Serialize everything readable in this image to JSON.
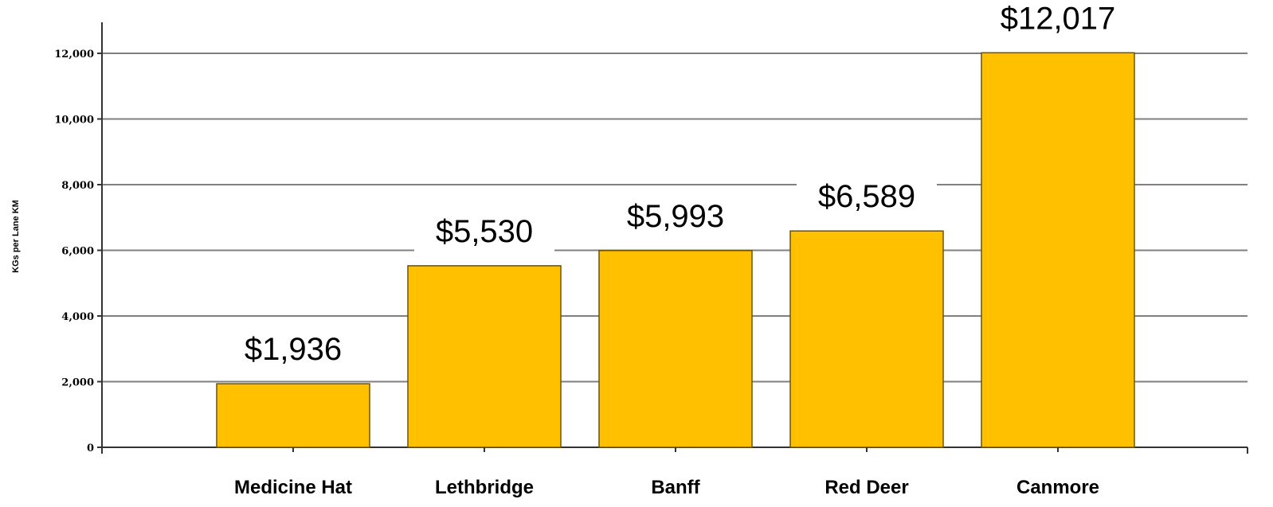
{
  "chart_data": {
    "type": "bar",
    "title": "",
    "xlabel": "",
    "ylabel": "KGs per Lane KM",
    "categories": [
      "Medicine Hat",
      "Lethbridge",
      "Banff",
      "Red Deer",
      "Canmore"
    ],
    "values": [
      1936,
      5530,
      5993,
      6589,
      12017
    ],
    "data_labels": [
      "$1,936",
      "$5,530",
      "$5,993",
      "$6,589",
      "$12,017"
    ],
    "yticks": [
      0,
      2000,
      4000,
      6000,
      8000,
      10000,
      12000
    ],
    "ytick_labels": [
      "0",
      "2,000",
      "4,000",
      "6,000",
      "8,000",
      "10,000",
      "12,000"
    ],
    "ylim": [
      0,
      12000
    ],
    "grid": true,
    "legend": "none",
    "colors": {
      "bar": "#ffc000",
      "grid": "#7f7f7f"
    }
  }
}
